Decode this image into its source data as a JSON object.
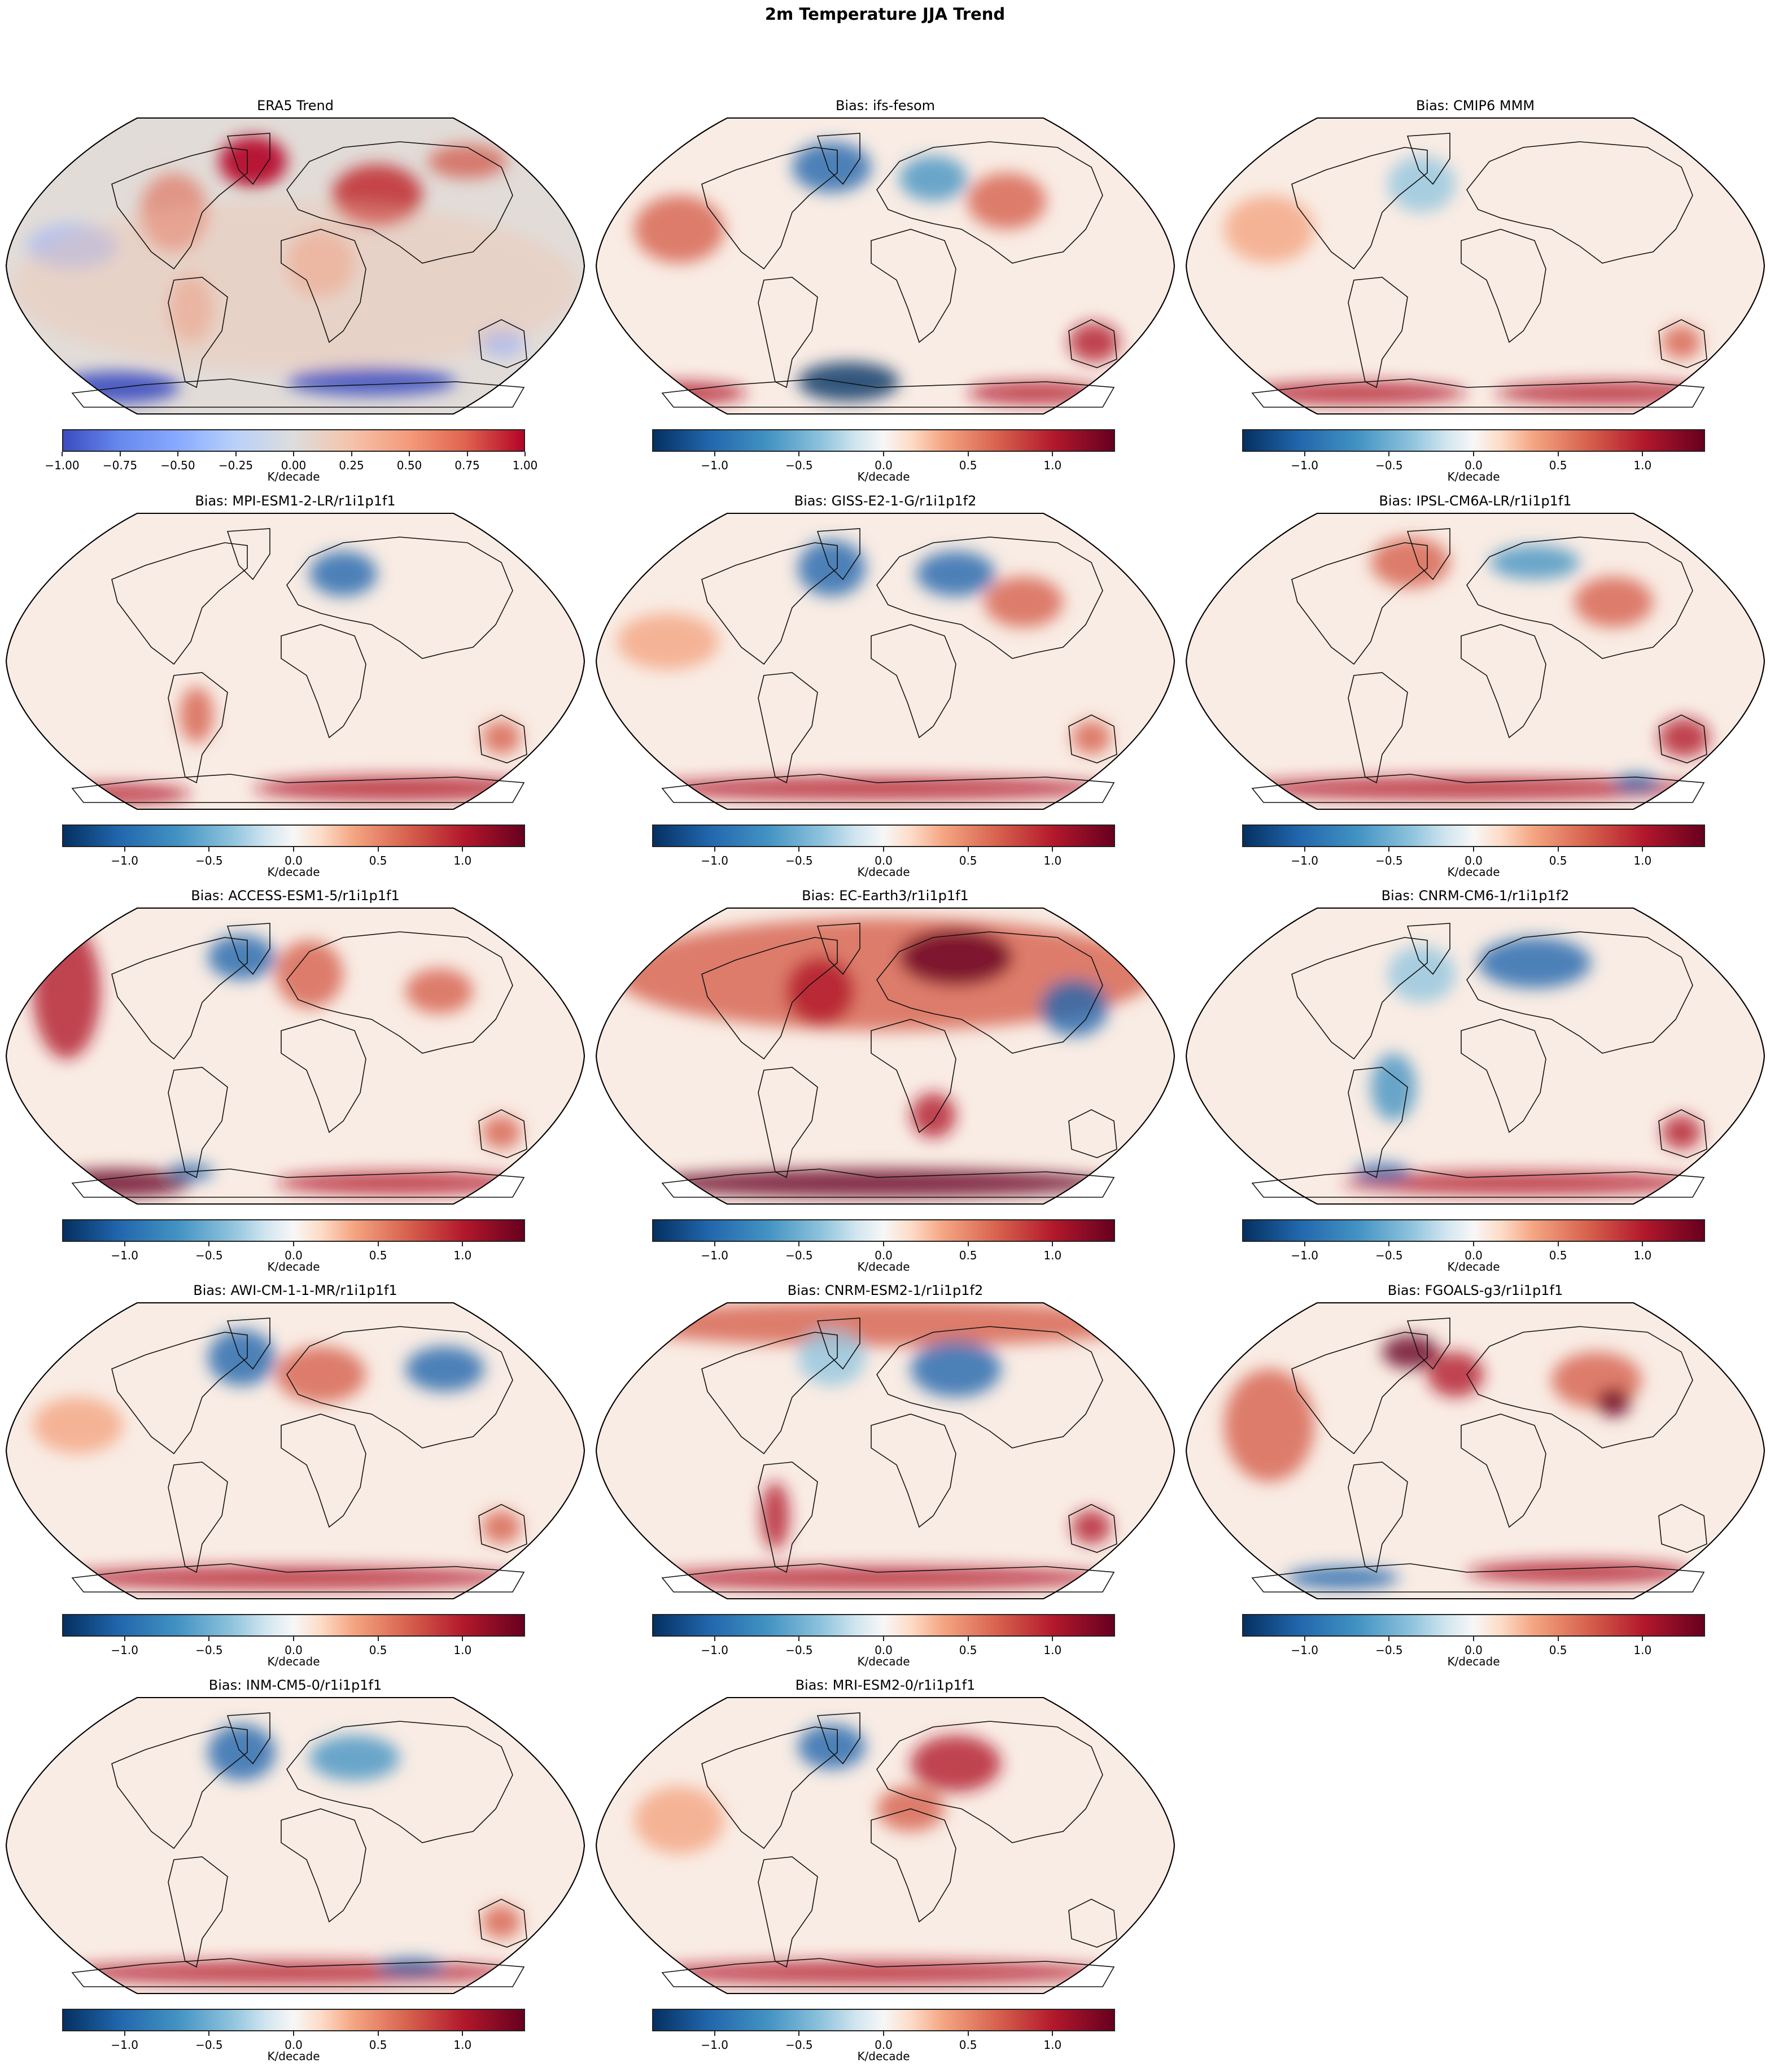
{
  "figure": {
    "suptitle": "2m Temperature JJA Trend",
    "colorbar_label": "K/decade"
  },
  "colorbars": {
    "trend": {
      "cmap": "coolwarm",
      "range": [
        -1.0,
        1.0
      ],
      "ticks": [
        "−1.00",
        "−0.75",
        "−0.50",
        "−0.25",
        "0.00",
        "0.25",
        "0.50",
        "0.75",
        "1.00"
      ],
      "tick_values": [
        -1.0,
        -0.75,
        -0.5,
        -0.25,
        0.0,
        0.25,
        0.5,
        0.75,
        1.0
      ]
    },
    "bias": {
      "cmap": "RdBu_r",
      "range": [
        -1.37,
        1.37
      ],
      "ticks": [
        "−1.0",
        "−0.5",
        "0.0",
        "0.5",
        "1.0"
      ],
      "tick_values": [
        -1.0,
        -0.5,
        0.0,
        0.5,
        1.0
      ]
    }
  },
  "panels": [
    {
      "title": "ERA5 Trend",
      "cbar": "trend"
    },
    {
      "title": "Bias: ifs-fesom",
      "cbar": "bias"
    },
    {
      "title": "Bias: CMIP6 MMM",
      "cbar": "bias"
    },
    {
      "title": "Bias: MPI-ESM1-2-LR/r1i1p1f1",
      "cbar": "bias"
    },
    {
      "title": "Bias: GISS-E2-1-G/r1i1p1f2",
      "cbar": "bias"
    },
    {
      "title": "Bias: IPSL-CM6A-LR/r1i1p1f1",
      "cbar": "bias"
    },
    {
      "title": "Bias: ACCESS-ESM1-5/r1i1p1f1",
      "cbar": "bias"
    },
    {
      "title": "Bias: EC-Earth3/r1i1p1f1",
      "cbar": "bias"
    },
    {
      "title": "Bias: CNRM-CM6-1/r1i1p1f2",
      "cbar": "bias"
    },
    {
      "title": "Bias: AWI-CM-1-1-MR/r1i1p1f1",
      "cbar": "bias"
    },
    {
      "title": "Bias: CNRM-ESM2-1/r1i1p1f2",
      "cbar": "bias"
    },
    {
      "title": "Bias: FGOALS-g3/r1i1p1f1",
      "cbar": "bias"
    },
    {
      "title": "Bias: INM-CM5-0/r1i1p1f1",
      "cbar": "bias"
    },
    {
      "title": "Bias: MRI-ESM2-0/r1i1p1f1",
      "cbar": "bias"
    }
  ],
  "chart_data": {
    "type": "heatmap",
    "title": "2m Temperature JJA Trend",
    "projection": "Robinson (global map)",
    "layout": {
      "rows": 5,
      "cols": 3,
      "panels": 14
    },
    "units": "K/decade",
    "subplots": [
      {
        "title": "ERA5 Trend",
        "cmap": "coolwarm",
        "vmin": -1.0,
        "vmax": 1.0,
        "notes": "Strong warming over Greenland/NE Canada, eastern Europe/W Russia, Middle East; cooling over Southern Ocean/Antarctic margin and E Pacific"
      },
      {
        "title": "Bias: ifs-fesom",
        "cmap": "RdBu_r",
        "vmin": -1.37,
        "vmax": 1.37,
        "notes": "Strong negative bias over Canadian Arctic, eastern Europe and Weddell/Antarctic sector; positive over Australia, central Asia, Southern Ocean (Pacific/Indian sectors)"
      },
      {
        "title": "Bias: CMIP6 MMM",
        "cmap": "RdBu_r",
        "vmin": -1.37,
        "vmax": 1.37,
        "notes": "Mostly weak positive bias; strong positive over Southern Ocean ring"
      },
      {
        "title": "Bias: MPI-ESM1-2-LR/r1i1p1f1",
        "cmap": "RdBu_r",
        "vmin": -1.37,
        "vmax": 1.37
      },
      {
        "title": "Bias: GISS-E2-1-G/r1i1p1f2",
        "cmap": "RdBu_r",
        "vmin": -1.37,
        "vmax": 1.37
      },
      {
        "title": "Bias: IPSL-CM6A-LR/r1i1p1f1",
        "cmap": "RdBu_r",
        "vmin": -1.37,
        "vmax": 1.37
      },
      {
        "title": "Bias: ACCESS-ESM1-5/r1i1p1f1",
        "cmap": "RdBu_r",
        "vmin": -1.37,
        "vmax": 1.37
      },
      {
        "title": "Bias: EC-Earth3/r1i1p1f1",
        "cmap": "RdBu_r",
        "vmin": -1.37,
        "vmax": 1.37
      },
      {
        "title": "Bias: CNRM-CM6-1/r1i1p1f2",
        "cmap": "RdBu_r",
        "vmin": -1.37,
        "vmax": 1.37
      },
      {
        "title": "Bias: AWI-CM-1-1-MR/r1i1p1f1",
        "cmap": "RdBu_r",
        "vmin": -1.37,
        "vmax": 1.37
      },
      {
        "title": "Bias: CNRM-ESM2-1/r1i1p1f2",
        "cmap": "RdBu_r",
        "vmin": -1.37,
        "vmax": 1.37
      },
      {
        "title": "Bias: FGOALS-g3/r1i1p1f1",
        "cmap": "RdBu_r",
        "vmin": -1.37,
        "vmax": 1.37
      },
      {
        "title": "Bias: INM-CM5-0/r1i1p1f1",
        "cmap": "RdBu_r",
        "vmin": -1.37,
        "vmax": 1.37
      },
      {
        "title": "Bias: MRI-ESM2-0/r1i1p1f1",
        "cmap": "RdBu_r",
        "vmin": -1.37,
        "vmax": 1.37
      }
    ],
    "colorbar": {
      "trend_ticks": [
        -1.0,
        -0.75,
        -0.5,
        -0.25,
        0.0,
        0.25,
        0.5,
        0.75,
        1.0
      ],
      "bias_ticks": [
        -1.0,
        -0.5,
        0.0,
        0.5,
        1.0
      ],
      "label": "K/decade",
      "orientation": "horizontal"
    }
  }
}
